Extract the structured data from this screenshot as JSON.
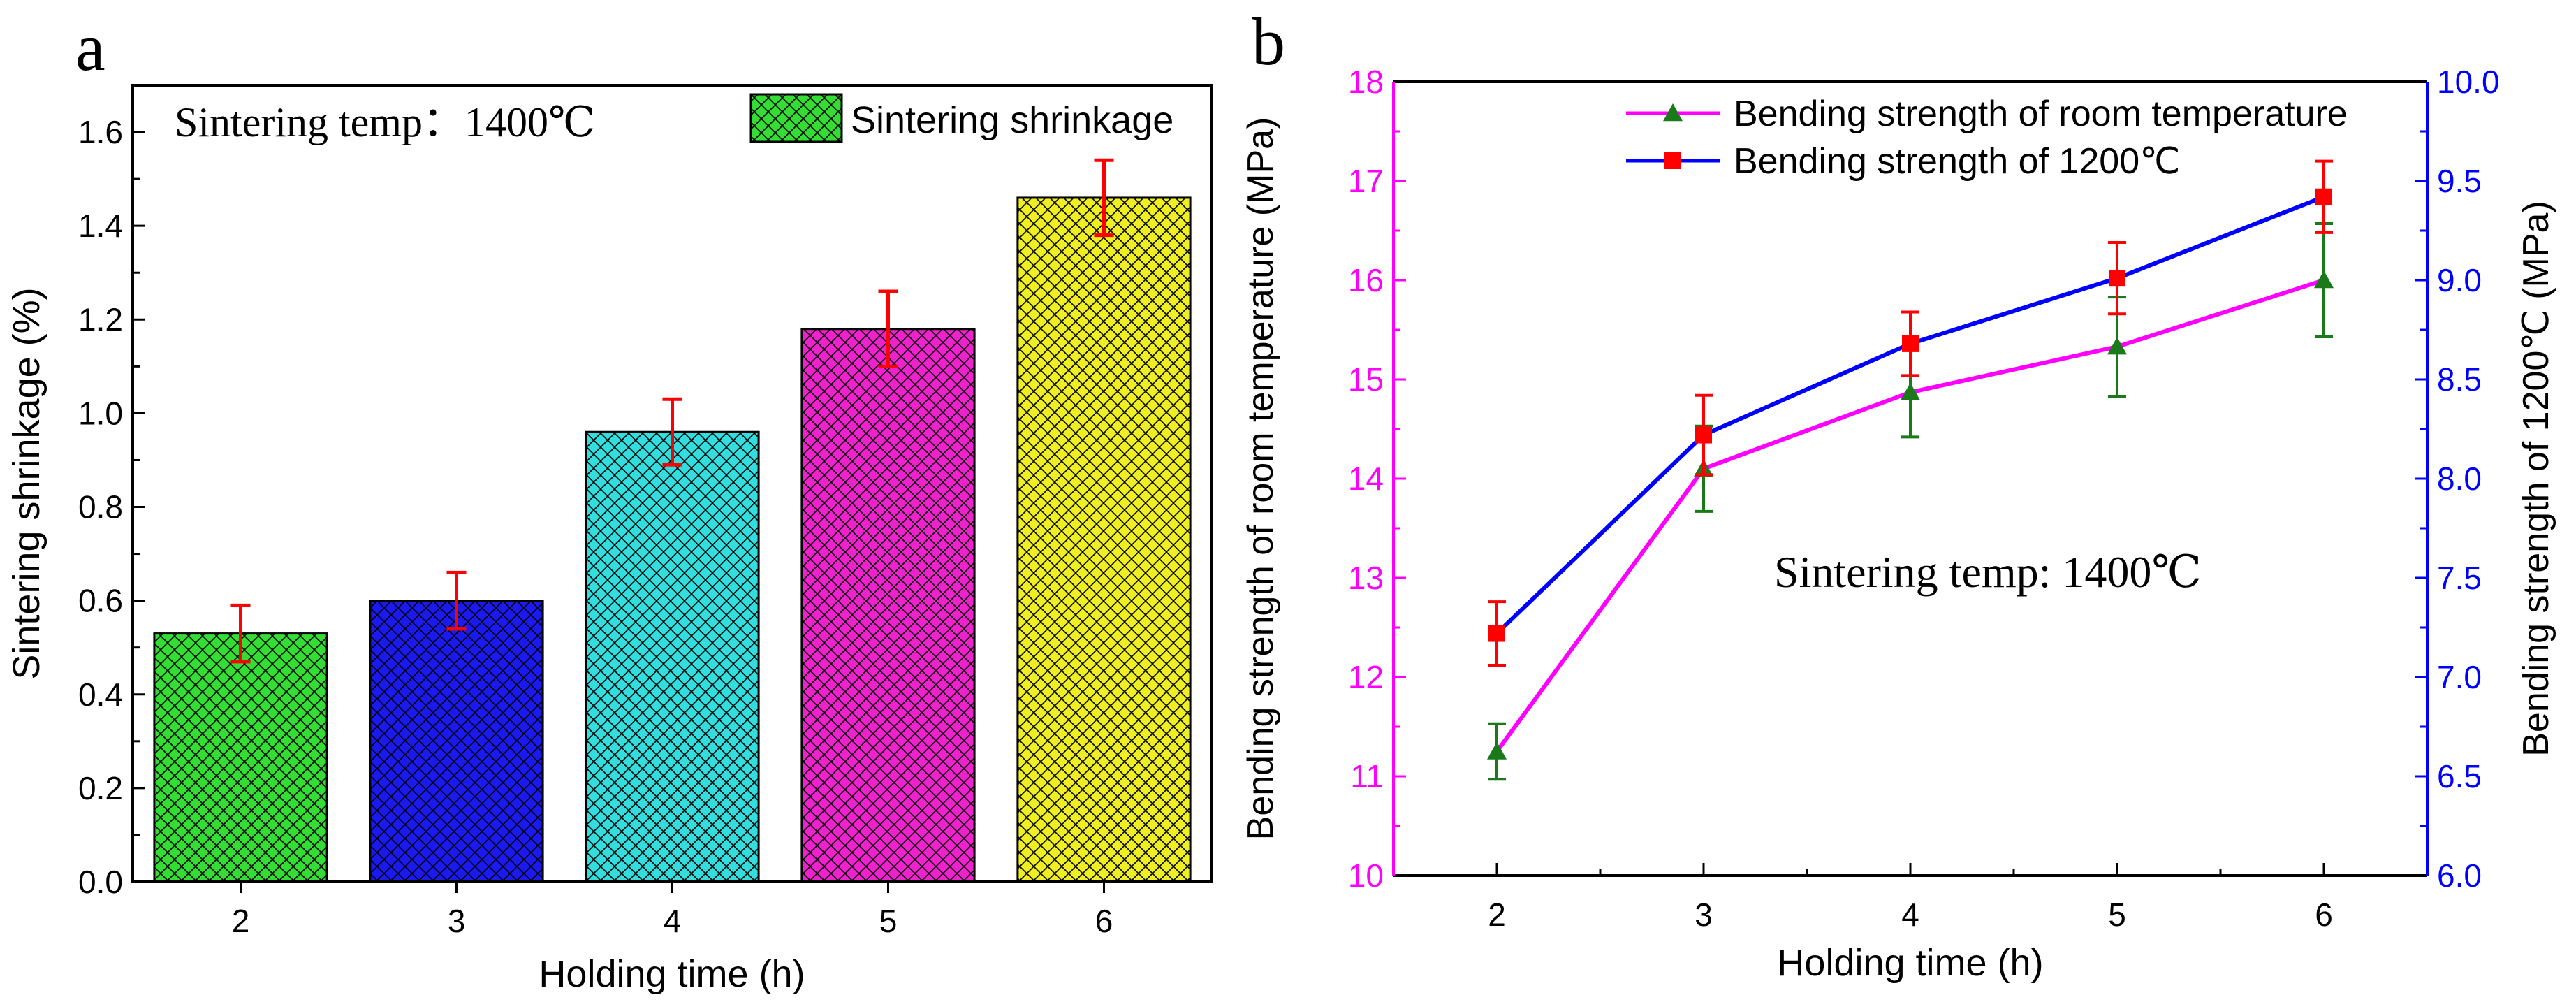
{
  "colors": {
    "axis": "#000000",
    "error_bar": "#ff0000",
    "left_axis_b": "#ff00ff",
    "right_axis_b": "#0000ff",
    "rt_line": "#ff00ff",
    "rt_marker": "#1a7a1a",
    "rt_error": "#1a7a1a",
    "ht_line": "#0000ff",
    "ht_marker": "#ff0000",
    "ht_error": "#ff0000",
    "legend_swatch_a": "#33dd33"
  },
  "chart_data": [
    {
      "id": "a",
      "panel_label": "a",
      "type": "bar",
      "annotation": "Sintering temp：1400℃",
      "xlabel": "Holding time (h)",
      "ylabel": "Sintering shrinkage (%)",
      "categories": [
        "2",
        "3",
        "4",
        "5",
        "6"
      ],
      "values": [
        0.53,
        0.6,
        0.96,
        1.18,
        1.46
      ],
      "errors": [
        0.06,
        0.06,
        0.07,
        0.08,
        0.08
      ],
      "bar_colors": [
        "#33dd33",
        "#1a1aee",
        "#33dddd",
        "#ee22cc",
        "#eeee22"
      ],
      "ylim": [
        0,
        1.7
      ],
      "yticks": [
        "0.0",
        "0.2",
        "0.4",
        "0.6",
        "0.8",
        "1.0",
        "1.2",
        "1.4",
        "1.6"
      ],
      "legend": {
        "label": "Sintering shrinkage",
        "position": "top-right"
      }
    },
    {
      "id": "b",
      "panel_label": "b",
      "type": "line",
      "annotation": "Sintering temp: 1400℃",
      "xlabel": "Holding time (h)",
      "ylabel_left": "Bending strength of room temperature (MPa)",
      "ylabel_right": "Bending strength of 1200℃ (MPa)",
      "x": [
        2,
        3,
        4,
        5,
        6
      ],
      "xticks": [
        "2",
        "3",
        "4",
        "5",
        "6"
      ],
      "xlim": [
        1.5,
        6.5
      ],
      "ylim_left": [
        10,
        18
      ],
      "yticks_left": [
        "10",
        "11",
        "12",
        "13",
        "14",
        "15",
        "16",
        "17",
        "18"
      ],
      "ylim_right": [
        6.0,
        10.0
      ],
      "yticks_right": [
        "6.0",
        "6.5",
        "7.0",
        "7.5",
        "8.0",
        "8.5",
        "9.0",
        "9.5",
        "10.0"
      ],
      "series": [
        {
          "name": "Bending strength of room temperature",
          "axis": "left",
          "values": [
            11.25,
            14.1,
            14.87,
            15.33,
            16.0
          ],
          "errors": [
            0.28,
            0.43,
            0.45,
            0.5,
            0.57
          ]
        },
        {
          "name": "Bending strength of 1200℃",
          "axis": "right",
          "values": [
            7.22,
            8.22,
            8.68,
            9.01,
            9.42
          ],
          "errors": [
            0.16,
            0.2,
            0.16,
            0.18,
            0.18
          ]
        }
      ],
      "legend_position": "top-right"
    }
  ]
}
